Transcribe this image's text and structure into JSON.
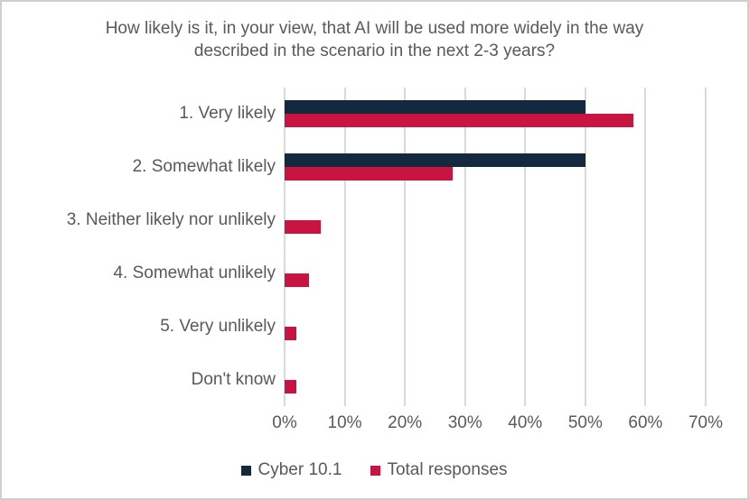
{
  "chart_data": {
    "type": "bar",
    "orientation": "horizontal",
    "title": "How likely is it, in your view, that AI will be used more widely in the way described in the scenario in the next 2-3 years?",
    "categories": [
      "1. Very likely",
      "2. Somewhat likely",
      "3. Neither likely nor unlikely",
      "4. Somewhat unlikely",
      "5. Very unlikely",
      "Don't know"
    ],
    "series": [
      {
        "name": "Cyber 10.1",
        "color": "#122940",
        "values": [
          50,
          50,
          0,
          0,
          0,
          0
        ]
      },
      {
        "name": "Total responses",
        "color": "#c81441",
        "values": [
          58,
          28,
          6,
          4,
          2,
          2
        ]
      }
    ],
    "x_ticks": [
      "0%",
      "10%",
      "20%",
      "30%",
      "40%",
      "50%",
      "60%",
      "70%"
    ],
    "x_tick_values": [
      0,
      10,
      20,
      30,
      40,
      50,
      60,
      70
    ],
    "xlim": [
      0,
      70
    ],
    "xlabel": "",
    "ylabel": "",
    "grid": "vertical-only",
    "legend_position": "bottom-center"
  },
  "colors": {
    "title_text": "#595959",
    "axis_text": "#595959",
    "gridline": "#d9d9d9",
    "background": "#ffffff",
    "frame_border": "#cfcfcf"
  }
}
